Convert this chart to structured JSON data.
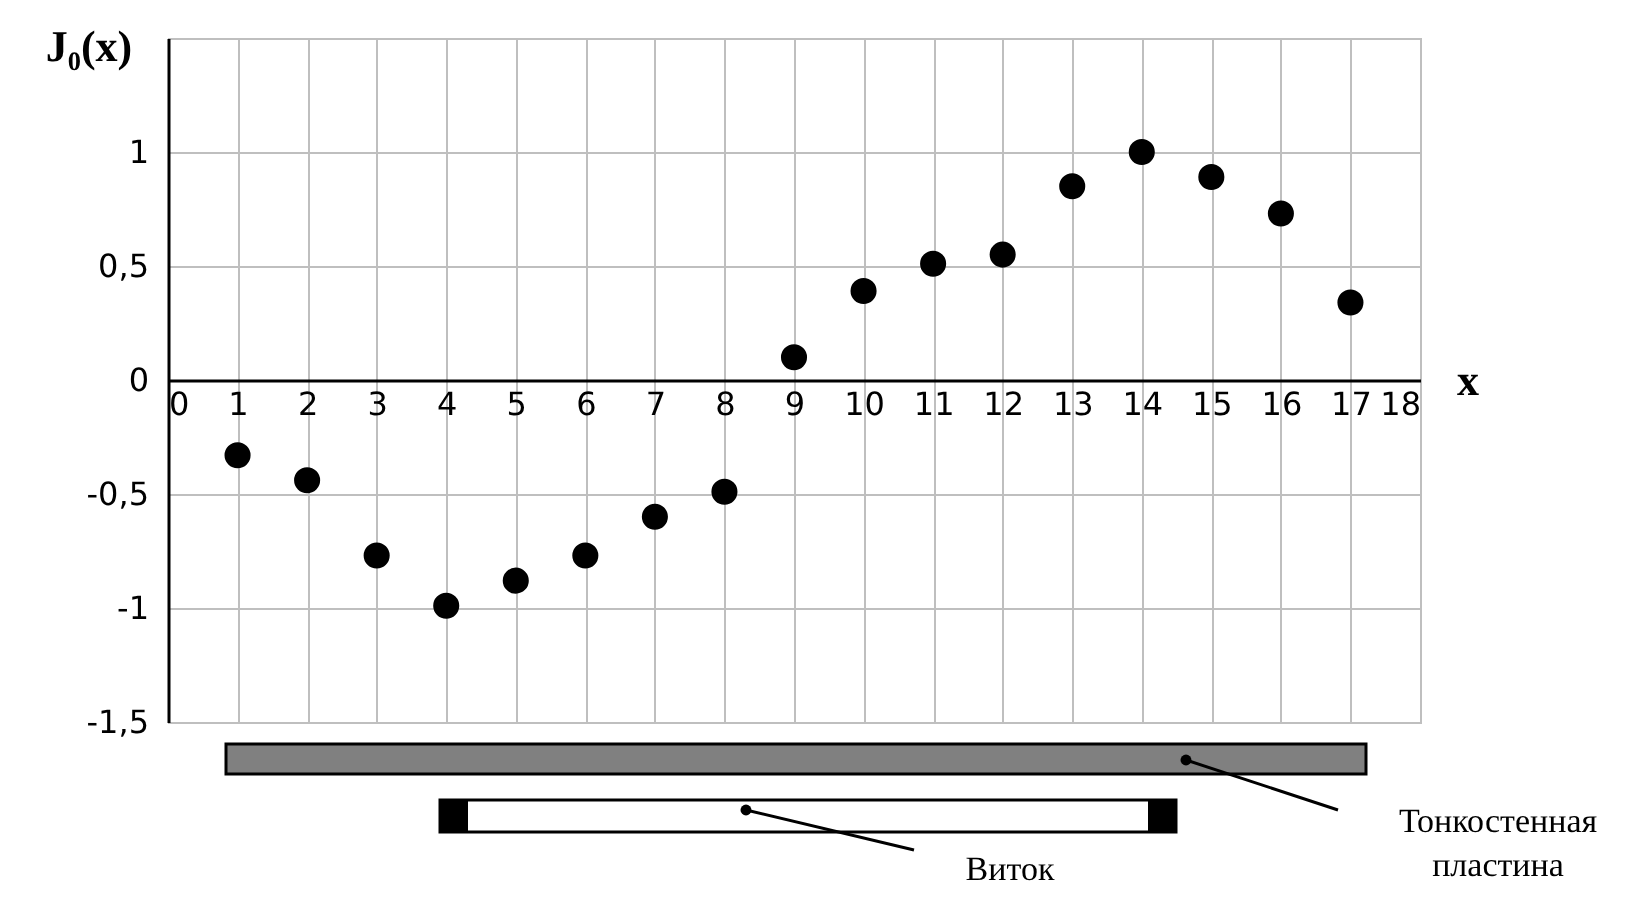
{
  "chart_data": {
    "type": "scatter",
    "xlabel": "x",
    "ylabel": "J₀(x)",
    "x": [
      1,
      2,
      3,
      4,
      5,
      6,
      7,
      8,
      9,
      10,
      11,
      12,
      13,
      14,
      15,
      16,
      17
    ],
    "series": [
      {
        "color": "#000000",
        "values": [
          -0.33,
          -0.44,
          -0.77,
          -0.99,
          -0.88,
          -0.77,
          -0.6,
          -0.49,
          0.1,
          0.39,
          0.51,
          0.55,
          0.85,
          1.0,
          0.89,
          0.73,
          0.34
        ]
      }
    ],
    "xlim": [
      0,
      18
    ],
    "xticks": [
      0,
      1,
      2,
      3,
      4,
      5,
      6,
      7,
      8,
      9,
      10,
      11,
      12,
      13,
      14,
      15,
      16,
      17,
      18
    ],
    "ylim": [
      -1.5,
      1.5
    ],
    "yticks": [
      {
        "value": -1.5,
        "label": "-1,5"
      },
      {
        "value": -1,
        "label": "-1"
      },
      {
        "value": -0.5,
        "label": "-0,5"
      },
      0,
      {
        "value": 0.5,
        "label": "0,5"
      },
      1,
      {
        "value": 1.5,
        "label": null
      }
    ],
    "grid": true,
    "marker": "circle",
    "annotations": [
      "Тонкостенная пластина",
      "Виток"
    ]
  }
}
